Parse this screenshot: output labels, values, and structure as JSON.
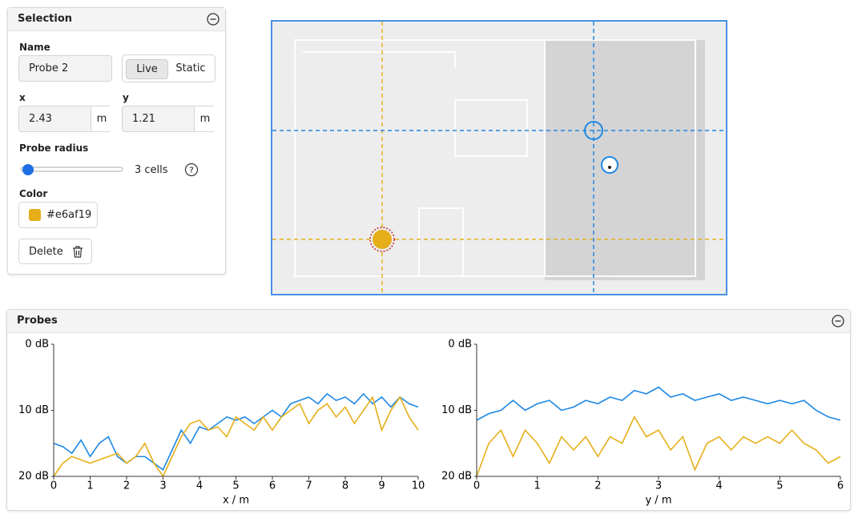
{
  "selection": {
    "title": "Selection",
    "name_label": "Name",
    "name_value": "Probe 2",
    "modes": [
      "Live",
      "Static"
    ],
    "x_label": "x",
    "x_value": "2.43",
    "x_unit": "m",
    "y_label": "y",
    "y_value": "1.21",
    "y_unit": "m",
    "radius_label": "Probe radius",
    "radius_value": "3 cells",
    "color_label": "Color",
    "color_value": "#e6af19",
    "delete_label": "Delete"
  },
  "probes_title": "Probes",
  "chart_data": [
    {
      "type": "line",
      "xlabel": "x / m",
      "x": [
        0,
        0.25,
        0.5,
        0.75,
        1,
        1.25,
        1.5,
        1.75,
        2,
        2.25,
        2.5,
        2.75,
        3,
        3.25,
        3.5,
        3.75,
        4,
        4.25,
        4.5,
        4.75,
        5,
        5.25,
        5.5,
        5.75,
        6,
        6.25,
        6.5,
        6.75,
        7,
        7.25,
        7.5,
        7.75,
        8,
        8.25,
        8.5,
        8.75,
        9,
        9.25,
        9.5,
        9.75,
        10
      ],
      "series": [
        {
          "color": "#1e88e5",
          "values": [
            15,
            15.5,
            16.5,
            14.5,
            17,
            15,
            14,
            17,
            18,
            17,
            17,
            18,
            19,
            16,
            13,
            15,
            12.5,
            13,
            12,
            11,
            11.5,
            11,
            12,
            11,
            10,
            11,
            9,
            8.5,
            8,
            9,
            7.5,
            8.5,
            8,
            9,
            7.5,
            9,
            8,
            9.5,
            8,
            9,
            9.5
          ]
        },
        {
          "color": "#e6af19",
          "values": [
            20,
            18,
            17,
            17.5,
            18,
            17.5,
            17,
            16.5,
            18,
            17,
            15,
            18,
            20,
            17,
            14,
            12,
            11.5,
            13,
            12.5,
            14,
            11,
            12,
            13,
            11,
            13,
            11,
            10,
            9,
            12,
            10,
            9,
            11,
            9.5,
            12,
            10,
            8,
            13,
            10,
            8,
            11,
            13
          ]
        }
      ],
      "xlim": [
        0,
        10
      ],
      "xticks": [
        0,
        1,
        2,
        3,
        4,
        5,
        6,
        7,
        8,
        9,
        10
      ],
      "ylim": [
        20,
        0
      ],
      "yticks": [
        {
          "value": 0,
          "label": "0 dB"
        },
        {
          "value": 10,
          "label": "10 dB"
        },
        {
          "value": 20,
          "label": "20 dB"
        }
      ]
    },
    {
      "type": "line",
      "xlabel": "y / m",
      "x": [
        0,
        0.2,
        0.4,
        0.6,
        0.8,
        1,
        1.2,
        1.4,
        1.6,
        1.8,
        2,
        2.2,
        2.4,
        2.6,
        2.8,
        3,
        3.2,
        3.4,
        3.6,
        3.8,
        4,
        4.2,
        4.4,
        4.6,
        4.8,
        5,
        5.2,
        5.4,
        5.6,
        5.8,
        6
      ],
      "series": [
        {
          "color": "#1e88e5",
          "values": [
            11.5,
            10.5,
            10,
            8.5,
            10,
            9,
            8.5,
            10,
            9.5,
            8.5,
            9,
            8,
            8.5,
            7,
            7.5,
            6.5,
            8,
            7.5,
            8.5,
            8,
            7.5,
            8.5,
            8,
            8.5,
            9,
            8.5,
            9,
            8.5,
            10,
            11,
            11.5
          ]
        },
        {
          "color": "#e6af19",
          "values": [
            20,
            15,
            13,
            17,
            13,
            15,
            18,
            14,
            16,
            14,
            17,
            14,
            15,
            11,
            14,
            13,
            16,
            14,
            19,
            15,
            14,
            16,
            14,
            15,
            14,
            15,
            13,
            15,
            16,
            18,
            17
          ]
        }
      ],
      "xlim": [
        0,
        6
      ],
      "xticks": [
        0,
        1,
        2,
        3,
        4,
        5,
        6
      ],
      "ylim": [
        20,
        0
      ],
      "yticks": [
        {
          "value": 0,
          "label": "0 dB"
        },
        {
          "value": 10,
          "label": "10 dB"
        },
        {
          "value": 20,
          "label": "20 dB"
        }
      ]
    }
  ]
}
